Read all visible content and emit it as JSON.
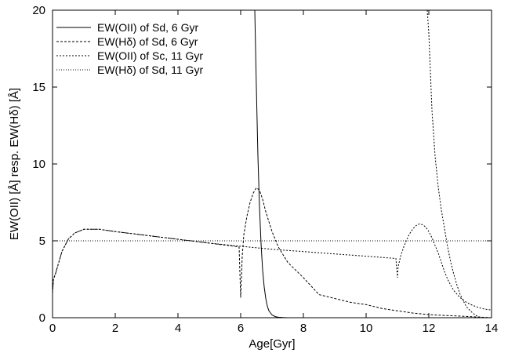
{
  "chart_data": {
    "type": "line",
    "title": "",
    "xlabel": "Age[Gyr]",
    "ylabel": "EW(OII) [Å] resp. EW(Hδ) [Å]",
    "xlim": [
      0,
      14
    ],
    "ylim": [
      0,
      20
    ],
    "x_ticks": [
      0,
      2,
      4,
      6,
      8,
      10,
      12,
      14
    ],
    "y_ticks": [
      0,
      5,
      10,
      15,
      20
    ],
    "x_tick_labels": [
      "0",
      "2",
      "4",
      "6",
      "8",
      "10",
      "12",
      "14"
    ],
    "y_tick_labels": [
      "0",
      "5",
      "10",
      "15",
      "20"
    ],
    "grid": false,
    "legend_position": "top-left",
    "series": [
      {
        "name": "EW(OII) of Sd, 6 Gyr",
        "dash": "solid",
        "x": [
          6.45,
          6.5,
          6.55,
          6.6,
          6.65,
          6.7,
          6.75,
          6.8,
          6.85,
          6.9,
          7.0,
          7.1,
          7.2,
          7.35,
          7.5
        ],
        "y": [
          20,
          15,
          10.5,
          7.2,
          4.8,
          3.1,
          2.0,
          1.25,
          0.75,
          0.45,
          0.18,
          0.07,
          0.03,
          0.01,
          0.0
        ]
      },
      {
        "name": "EW(Hδ) of Sd, 6 Gyr",
        "dash": "dashed",
        "x": [
          0.0,
          0.03,
          0.1,
          0.2,
          0.3,
          0.5,
          0.7,
          1.0,
          1.5,
          2.0,
          3.0,
          4.0,
          5.0,
          5.95,
          6.0,
          6.02,
          6.05,
          6.1,
          6.2,
          6.3,
          6.4,
          6.5,
          6.6,
          6.7,
          6.8,
          7.0,
          7.2,
          7.5,
          8.0,
          8.5,
          9.0,
          9.5,
          10.0,
          10.5,
          11.0,
          11.5,
          12.0,
          12.5,
          13.0,
          13.5,
          14.0
        ],
        "y": [
          1.6,
          2.5,
          2.9,
          3.6,
          4.3,
          5.1,
          5.5,
          5.75,
          5.75,
          5.6,
          5.35,
          5.1,
          4.85,
          4.6,
          1.3,
          2.4,
          4.0,
          5.4,
          6.6,
          7.5,
          8.1,
          8.45,
          8.3,
          7.7,
          6.9,
          5.6,
          4.6,
          3.6,
          2.6,
          1.5,
          1.25,
          1.0,
          0.85,
          0.6,
          0.45,
          0.3,
          0.2,
          0.15,
          0.1,
          0.05,
          0.0
        ]
      },
      {
        "name": "EW(OII) of Sc, 11 Gyr",
        "dash": "dotted",
        "x": [
          0.0,
          0.03,
          0.1,
          0.2,
          0.3,
          0.5,
          0.7,
          1.0,
          1.5,
          2.0,
          3.0,
          4.0,
          5.0,
          6.0,
          7.0,
          8.0,
          9.0,
          10.0,
          10.95,
          11.0,
          11.02,
          11.1,
          11.2,
          11.3,
          11.4,
          11.5,
          11.6,
          11.7,
          11.8,
          11.9,
          12.0,
          12.1,
          12.2,
          12.3,
          12.4,
          12.5,
          12.6,
          12.7,
          12.8,
          13.0,
          13.2,
          13.4,
          13.6,
          13.8,
          14.0
        ],
        "y": [
          1.6,
          2.5,
          2.9,
          3.6,
          4.3,
          5.1,
          5.5,
          5.75,
          5.75,
          5.6,
          5.35,
          5.1,
          4.85,
          4.65,
          4.45,
          4.3,
          4.15,
          4.0,
          3.85,
          2.6,
          3.3,
          4.0,
          4.6,
          5.1,
          5.5,
          5.8,
          6.0,
          6.1,
          6.05,
          5.9,
          5.6,
          5.2,
          4.7,
          4.2,
          3.6,
          3.0,
          2.5,
          2.1,
          1.75,
          1.3,
          1.0,
          0.8,
          0.65,
          0.55,
          0.5
        ]
      },
      {
        "name": "EW(Hδ) of Sd, 11 Gyr",
        "dash": "fine-dotted",
        "x": [
          0.0,
          14.0
        ],
        "y": [
          5.0,
          5.0
        ]
      },
      {
        "name": "",
        "dash": "dotted",
        "x": [
          11.95,
          12.0,
          12.1,
          12.2,
          12.3,
          12.4,
          12.5,
          12.6,
          12.7,
          12.8,
          12.9,
          13.0,
          13.2,
          13.4,
          13.5,
          13.6,
          13.8
        ],
        "y": [
          20,
          18.5,
          13.5,
          10.5,
          8.5,
          7.0,
          5.8,
          4.6,
          3.6,
          2.8,
          2.1,
          1.5,
          0.7,
          0.3,
          0.15,
          0.05,
          0.0
        ]
      }
    ]
  }
}
